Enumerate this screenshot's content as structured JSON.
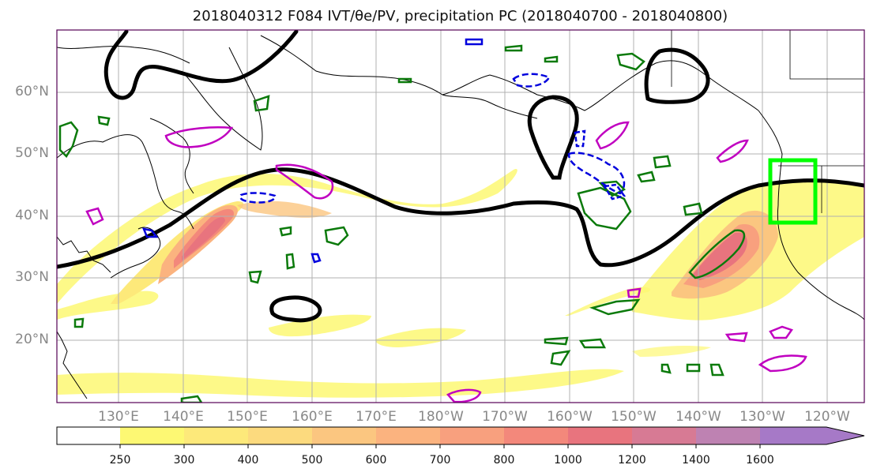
{
  "title": "2018040312 F084 IVT/θe/PV, precipitation PC (2018040700 - 2018040800)",
  "lat_labels": [
    "60°N",
    "50°N",
    "40°N",
    "30°N",
    "20°N"
  ],
  "lon_labels": [
    "130°E",
    "140°E",
    "150°E",
    "160°E",
    "170°E",
    "180°W",
    "170°W",
    "160°W",
    "150°W",
    "140°W",
    "130°W",
    "120°W"
  ],
  "colorbar": {
    "labels": [
      "250",
      "300",
      "400",
      "500",
      "600",
      "700",
      "800",
      "1000",
      "1200",
      "1400",
      "1600"
    ],
    "colors": [
      "#ffffff",
      "#fdf873",
      "#fde97a",
      "#fcda7e",
      "#fbc680",
      "#fbb37f",
      "#f8a07e",
      "#f3887b",
      "#e8747e",
      "#d77a94",
      "#be82b2",
      "#a679c7"
    ]
  },
  "colors": {
    "theta_contour": "#000000",
    "pv_positive": "#0b7a0b",
    "pv_negative": "#0000dd",
    "pv_magenta": "#c000c0",
    "target_box": "#00ff00",
    "frame": "#550055"
  }
}
